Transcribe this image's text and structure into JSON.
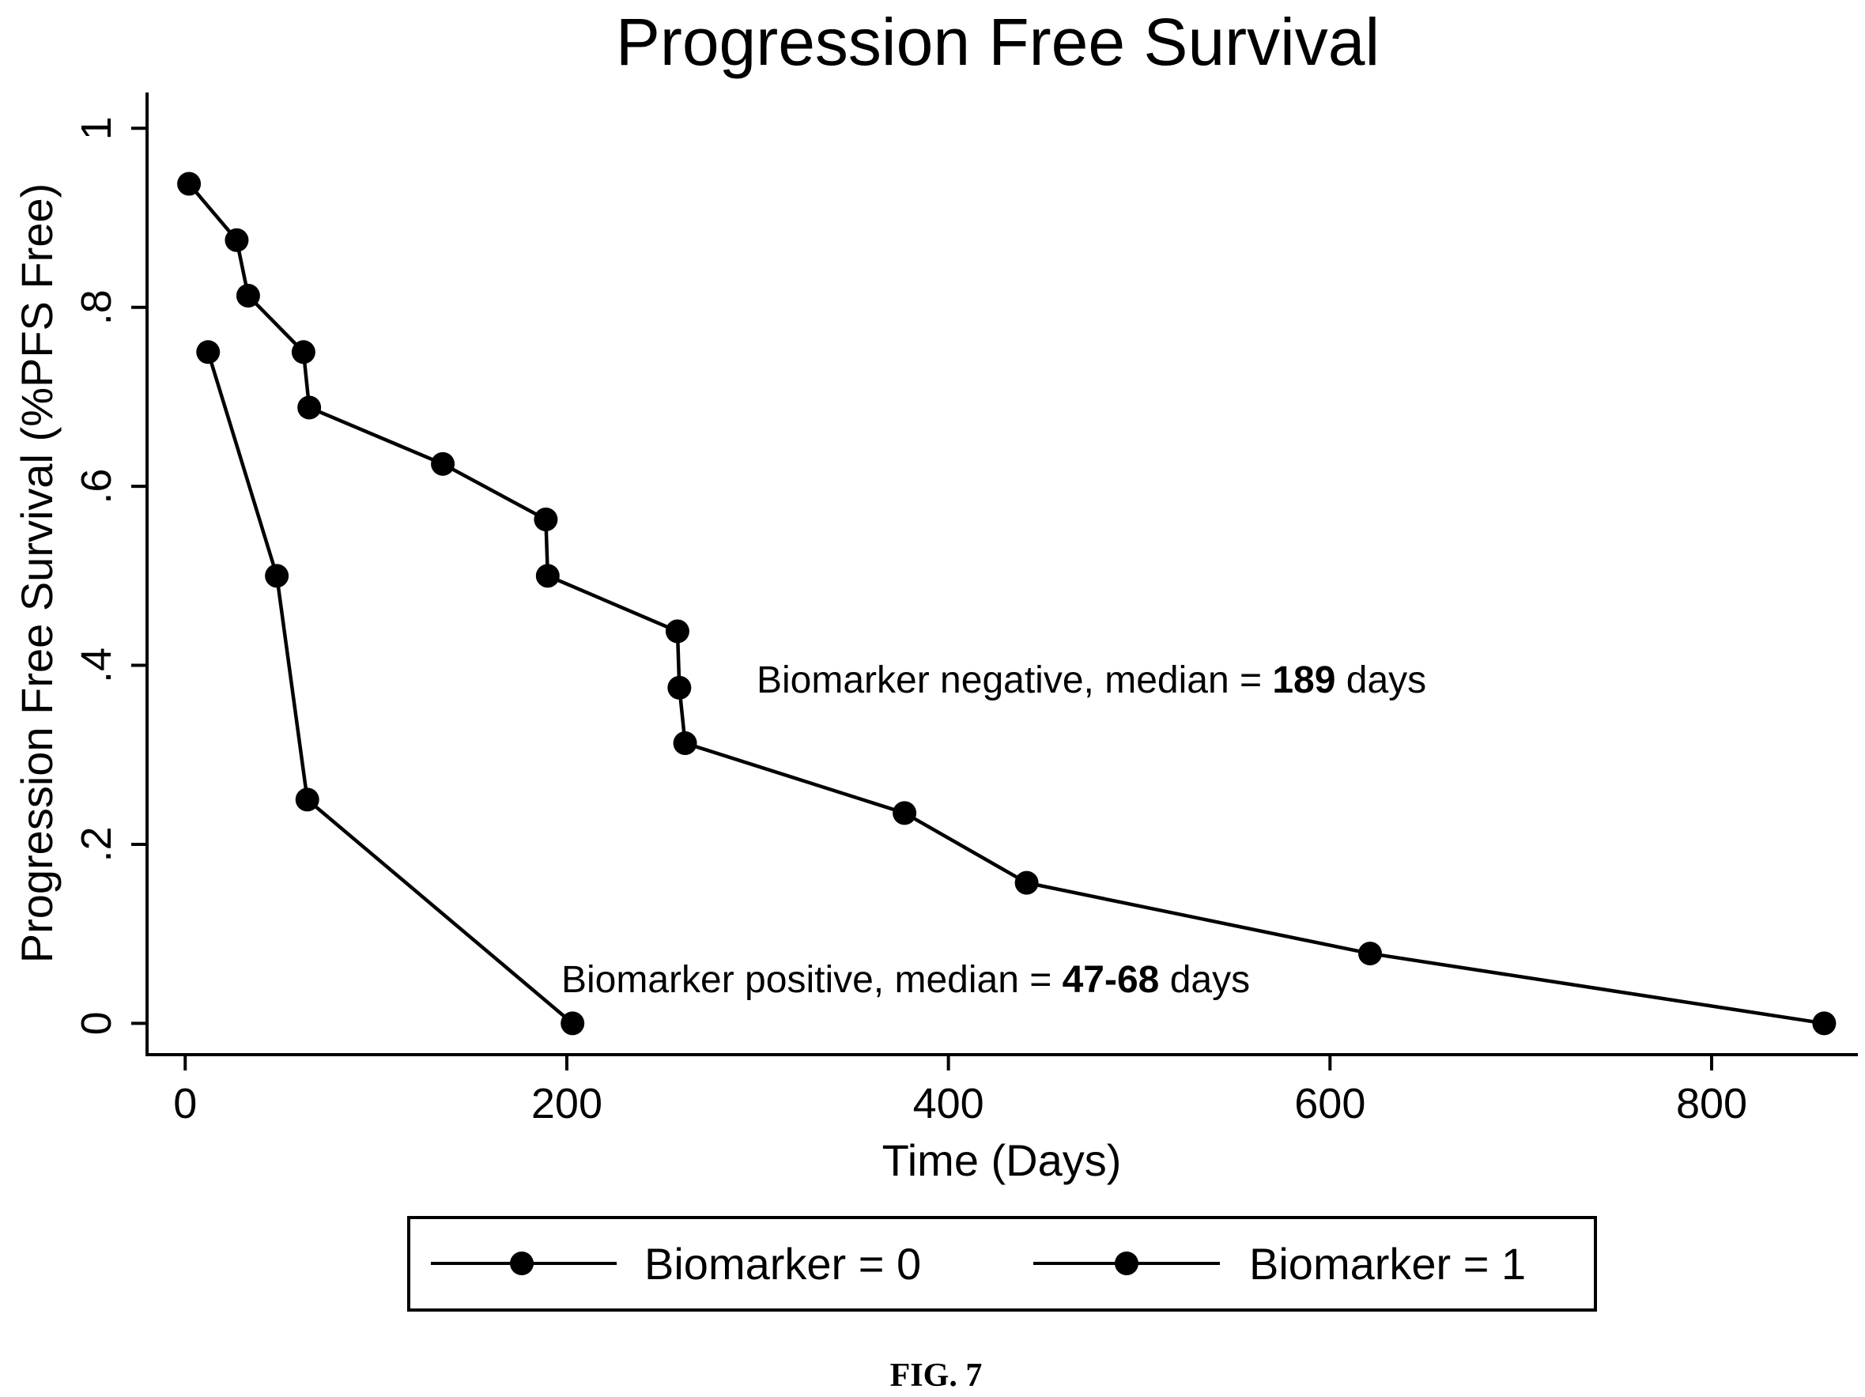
{
  "chart_data": {
    "type": "line",
    "title": "Progression Free Survival",
    "xlabel": "Time (Days)",
    "ylabel": "Progression Free Survival (%PFS Free)",
    "xlim": [
      -20,
      875
    ],
    "ylim": [
      -0.035,
      1.04
    ],
    "xticks": [
      {
        "value": 0,
        "label": "0"
      },
      {
        "value": 200,
        "label": "200"
      },
      {
        "value": 400,
        "label": "400"
      },
      {
        "value": 600,
        "label": "600"
      },
      {
        "value": 800,
        "label": "800"
      }
    ],
    "yticks": [
      {
        "value": 0,
        "label": "0"
      },
      {
        "value": 0.2,
        "label": ".2"
      },
      {
        "value": 0.4,
        "label": ".4"
      },
      {
        "value": 0.6,
        "label": ".6"
      },
      {
        "value": 0.8,
        "label": ".8"
      },
      {
        "value": 1,
        "label": "1"
      }
    ],
    "grid": false,
    "legend_position": "bottom",
    "series": [
      {
        "name": "Biomarker = 0",
        "x": [
          2,
          27,
          33,
          62,
          65,
          135,
          189,
          190,
          258,
          259,
          262,
          377,
          441,
          621,
          859
        ],
        "y": [
          0.938,
          0.875,
          0.813,
          0.75,
          0.688,
          0.625,
          0.563,
          0.5,
          0.438,
          0.375,
          0.313,
          0.235,
          0.157,
          0.078,
          0.0
        ]
      },
      {
        "name": "Biomarker = 1",
        "x": [
          12,
          48,
          64,
          203
        ],
        "y": [
          0.75,
          0.5,
          0.25,
          0.0
        ]
      }
    ],
    "annotations": [
      {
        "text_prefix": "Biomarker negative, median = ",
        "text_bold": "189",
        "text_suffix": " days",
        "x": 300,
        "y": 0.38
      },
      {
        "text_prefix": "Biomarker positive, median = ",
        "text_bold": "47-68",
        "text_suffix": " days",
        "x": 200,
        "y": 0.047
      }
    ]
  },
  "figure_label": "FIG. 7"
}
